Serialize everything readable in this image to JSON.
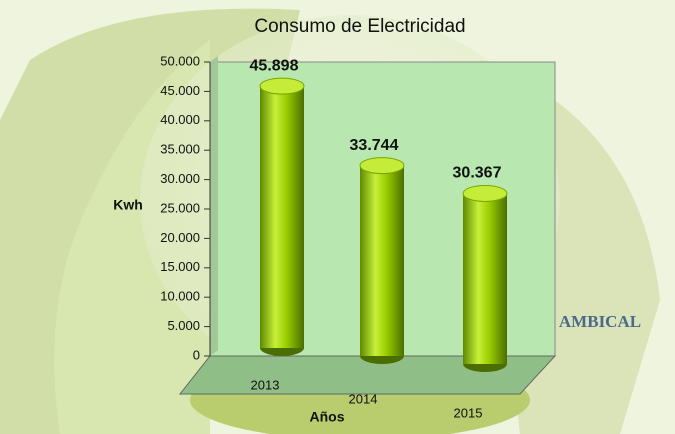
{
  "chart_data": {
    "type": "bar",
    "title": "Consumo de Electricidad",
    "x_label": "Años",
    "y_label": "Kwh",
    "categories": [
      "2013",
      "2014",
      "2015"
    ],
    "values": [
      45898,
      33744,
      30367
    ],
    "value_labels": [
      "45.898",
      "33.744",
      "30.367"
    ],
    "color": "#9acd00",
    "ylim": [
      0,
      50000
    ],
    "yticks": [
      0,
      {
        "value": 5000,
        "label": "5.000"
      },
      {
        "value": 10000,
        "label": "10.000"
      },
      {
        "value": 15000,
        "label": "15.000"
      },
      {
        "value": 20000,
        "label": "20.000"
      },
      {
        "value": 25000,
        "label": "25.000"
      },
      {
        "value": 30000,
        "label": "30.000"
      },
      {
        "value": 35000,
        "label": "35.000"
      },
      {
        "value": 40000,
        "label": "40.000"
      },
      {
        "value": 45000,
        "label": "45.000"
      },
      {
        "value": 50000,
        "label": "50.000"
      }
    ]
  },
  "logo_text": "AMBICAL"
}
